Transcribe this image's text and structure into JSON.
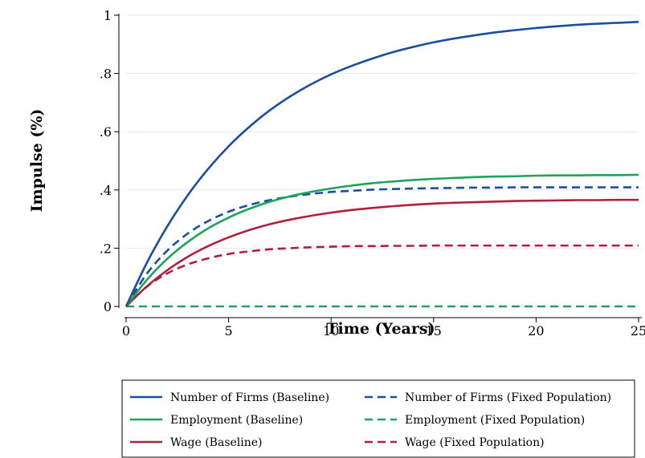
{
  "chart_data": {
    "type": "line",
    "title": "",
    "xlabel": "Time (Years)",
    "ylabel": "Impulse (%)",
    "xlim": [
      0,
      25
    ],
    "ylim": [
      0,
      1
    ],
    "xticks": [
      0,
      5,
      10,
      15,
      20,
      25
    ],
    "xtick_labels": [
      "0",
      "5",
      "10",
      "15",
      "20",
      "25"
    ],
    "yticks": [
      0,
      0.2,
      0.4,
      0.6,
      0.8,
      1
    ],
    "ytick_labels": [
      "0",
      ".2",
      ".4",
      ".6",
      ".8",
      "1"
    ],
    "grid": true,
    "legend_position": "bottom",
    "x": [
      0,
      1,
      2,
      3,
      4,
      5,
      6,
      7,
      8,
      9,
      10,
      11,
      12,
      13,
      14,
      15,
      16,
      17,
      18,
      19,
      20,
      21,
      22,
      23,
      24,
      25
    ],
    "series": [
      {
        "name": "Number of Firms (Baseline)",
        "color": "#1a4fa0",
        "dash": "solid",
        "values": [
          0,
          0.148,
          0.274,
          0.381,
          0.472,
          0.55,
          0.616,
          0.673,
          0.721,
          0.762,
          0.797,
          0.826,
          0.851,
          0.873,
          0.891,
          0.907,
          0.92,
          0.931,
          0.941,
          0.949,
          0.956,
          0.962,
          0.967,
          0.971,
          0.974,
          0.977
        ]
      },
      {
        "name": "Number of Firms (Fixed Population)",
        "color": "#1a4fa0",
        "dash": "dashed",
        "values": [
          0,
          0.111,
          0.191,
          0.25,
          0.293,
          0.325,
          0.348,
          0.365,
          0.377,
          0.386,
          0.393,
          0.397,
          0.401,
          0.403,
          0.405,
          0.406,
          0.407,
          0.408,
          0.408,
          0.409,
          0.409,
          0.409,
          0.409,
          0.409,
          0.409,
          0.409
        ]
      },
      {
        "name": "Employment (Baseline)",
        "color": "#1fa35a",
        "dash": "solid",
        "values": [
          0,
          0.09,
          0.163,
          0.221,
          0.268,
          0.305,
          0.335,
          0.359,
          0.378,
          0.393,
          0.405,
          0.415,
          0.423,
          0.429,
          0.434,
          0.438,
          0.441,
          0.444,
          0.446,
          0.447,
          0.449,
          0.45,
          0.45,
          0.451,
          0.451,
          0.452
        ]
      },
      {
        "name": "Employment (Fixed Population)",
        "color": "#1fa35a",
        "dash": "dashed",
        "values": [
          0,
          0,
          0,
          0,
          0,
          0,
          0,
          0,
          0,
          0,
          0,
          0,
          0,
          0,
          0,
          0,
          0,
          0,
          0,
          0,
          0,
          0,
          0,
          0,
          0,
          0
        ]
      },
      {
        "name": "Wage (Baseline)",
        "color": "#b0203d",
        "dash": "solid",
        "values": [
          0,
          0.068,
          0.124,
          0.17,
          0.207,
          0.237,
          0.262,
          0.282,
          0.298,
          0.311,
          0.322,
          0.331,
          0.338,
          0.344,
          0.349,
          0.353,
          0.356,
          0.358,
          0.36,
          0.362,
          0.363,
          0.364,
          0.365,
          0.365,
          0.366,
          0.366
        ]
      },
      {
        "name": "Wage (Fixed Population)",
        "color": "#b0203d",
        "dash": "dashed",
        "values": [
          0,
          0.067,
          0.113,
          0.144,
          0.165,
          0.18,
          0.189,
          0.196,
          0.2,
          0.203,
          0.205,
          0.207,
          0.207,
          0.208,
          0.208,
          0.209,
          0.209,
          0.209,
          0.209,
          0.209,
          0.209,
          0.209,
          0.209,
          0.209,
          0.209,
          0.209
        ]
      }
    ],
    "legend_order": [
      0,
      1,
      2,
      3,
      4,
      5
    ]
  }
}
